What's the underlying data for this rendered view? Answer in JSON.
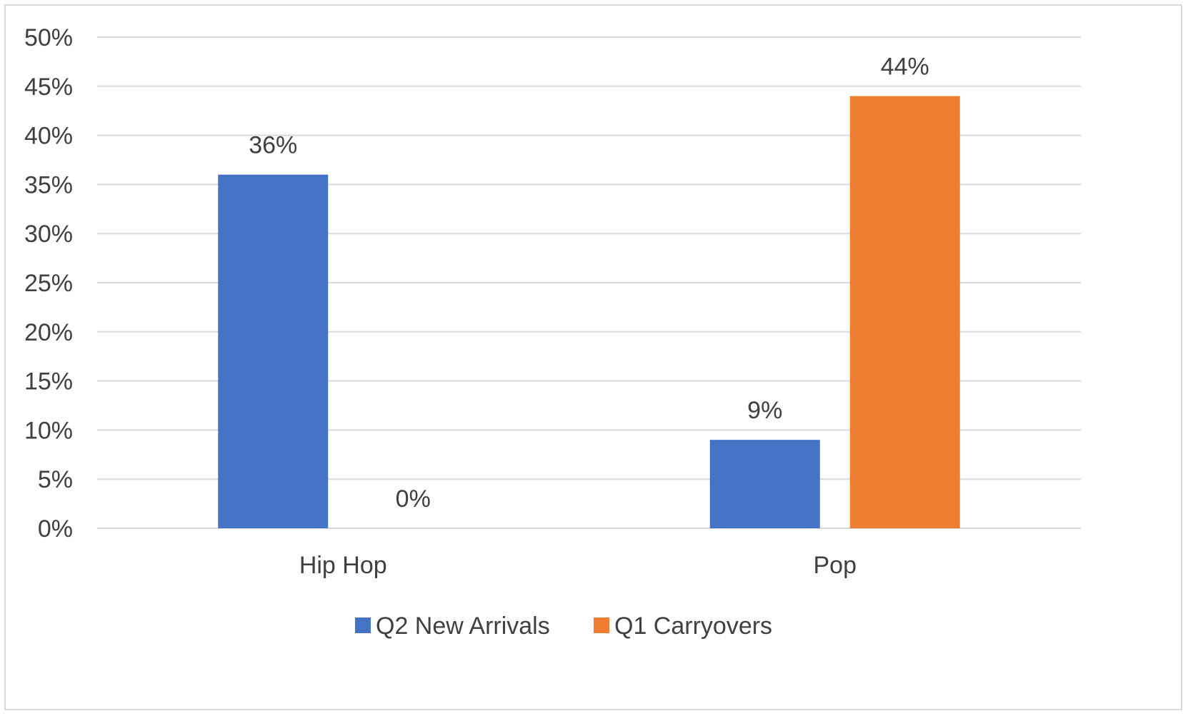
{
  "chart_data": {
    "type": "bar",
    "categories": [
      "Hip Hop",
      "Pop"
    ],
    "series": [
      {
        "name": "Q2 New Arrivals",
        "values": [
          36,
          9
        ],
        "color": "#4472C4"
      },
      {
        "name": "Q1 Carryovers",
        "values": [
          0,
          44
        ],
        "color": "#ED7D31"
      }
    ],
    "y_tick_labels": [
      "0%",
      "5%",
      "10%",
      "15%",
      "20%",
      "25%",
      "30%",
      "35%",
      "40%",
      "45%",
      "50%"
    ],
    "value_suffix": "%",
    "ylim": [
      0,
      50
    ],
    "ytick_step": 5,
    "grid": true,
    "legend_position": "bottom",
    "gridline_color": "#D9D9D9",
    "text_color": "#404040"
  }
}
